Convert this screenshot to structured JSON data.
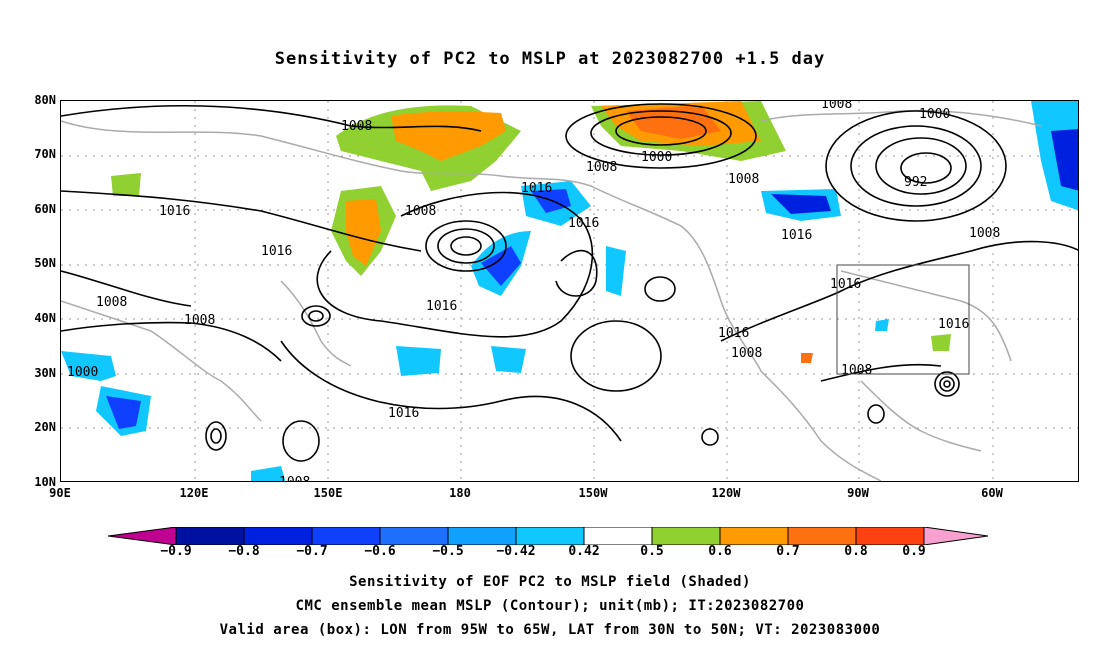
{
  "title": "Sensitivity of PC2 to MSLP at 2023082700 +1.5 day",
  "lat_labels": [
    "80N",
    "70N",
    "60N",
    "50N",
    "40N",
    "30N",
    "20N",
    "10N"
  ],
  "lon_labels": [
    "90E",
    "120E",
    "150E",
    "180",
    "150W",
    "120W",
    "90W",
    "60W"
  ],
  "contour_labels": [
    "1008",
    "1000",
    "1008",
    "992",
    "1008",
    "1016",
    "1008",
    "1016",
    "1016",
    "1016",
    "1008",
    "1016",
    "1008",
    "1016",
    "1016",
    "1016",
    "1008",
    "1008",
    "1000",
    "1016",
    "1008",
    "1016",
    "1008",
    "1008"
  ],
  "colorbar": {
    "colors": [
      "#c00090",
      "#0010a0",
      "#0020e0",
      "#1040ff",
      "#2070ff",
      "#10a0ff",
      "#10c8ff",
      "#ffffff",
      "#90d030",
      "#ff9a00",
      "#ff7010",
      "#ff4010",
      "#ff1010",
      "#f8a0d0"
    ],
    "labels": [
      "−0.9",
      "−0.8",
      "−0.7",
      "−0.6",
      "−0.5",
      "−0.42",
      "0.42",
      "0.5",
      "0.6",
      "0.7",
      "0.8",
      "0.9"
    ]
  },
  "box": {
    "lon_from": "95W",
    "lon_to": "65W",
    "lat_from": "30N",
    "lat_to": "50N"
  },
  "captions": [
    "Sensitivity of EOF PC2 to MSLP field (Shaded)",
    "CMC ensemble mean MSLP (Contour); unit(mb); IT:2023082700",
    "Valid area (box): LON from 95W to 65W, LAT from 30N to 50N; VT: 2023083000"
  ]
}
